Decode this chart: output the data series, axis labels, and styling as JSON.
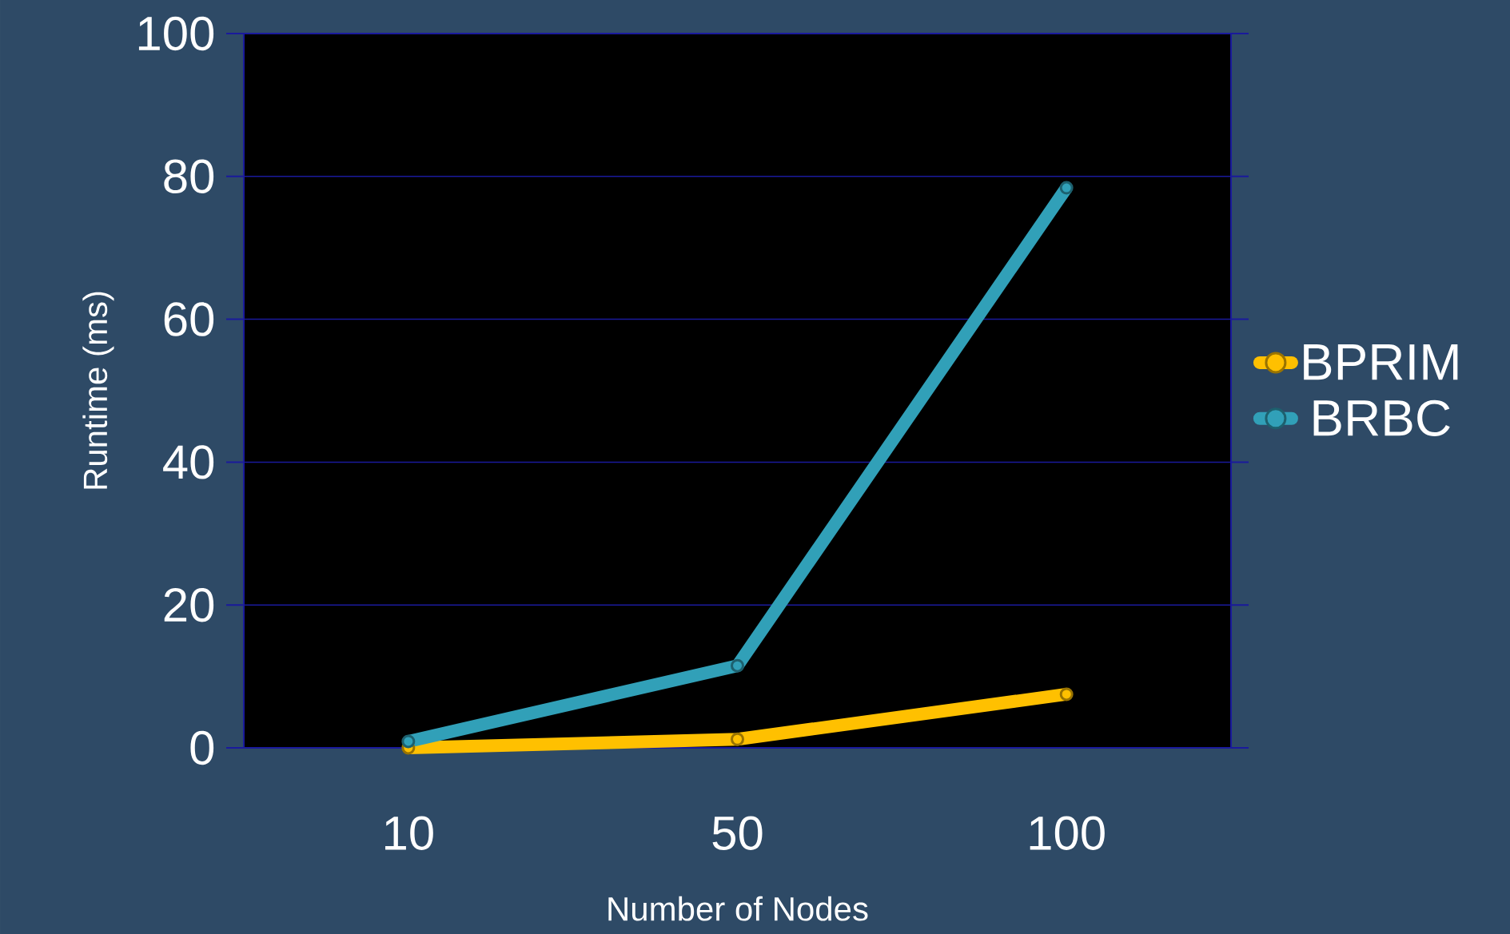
{
  "chart_data": {
    "type": "line",
    "xlabel": "Number of Nodes",
    "ylabel": "Runtime (ms)",
    "categories": [
      "10",
      "50",
      "100"
    ],
    "series": [
      {
        "name": "BPRIM",
        "color": "#ffc000",
        "values": [
          0,
          1.2,
          7.5
        ]
      },
      {
        "name": "BRBC",
        "color": "#31a0b8",
        "values": [
          0.9,
          11.5,
          78.4
        ]
      }
    ],
    "ylim": [
      0,
      100
    ],
    "yticks": [
      0,
      20,
      40,
      60,
      80,
      100
    ],
    "grid": "y",
    "legend": "right",
    "marker": "circle"
  }
}
